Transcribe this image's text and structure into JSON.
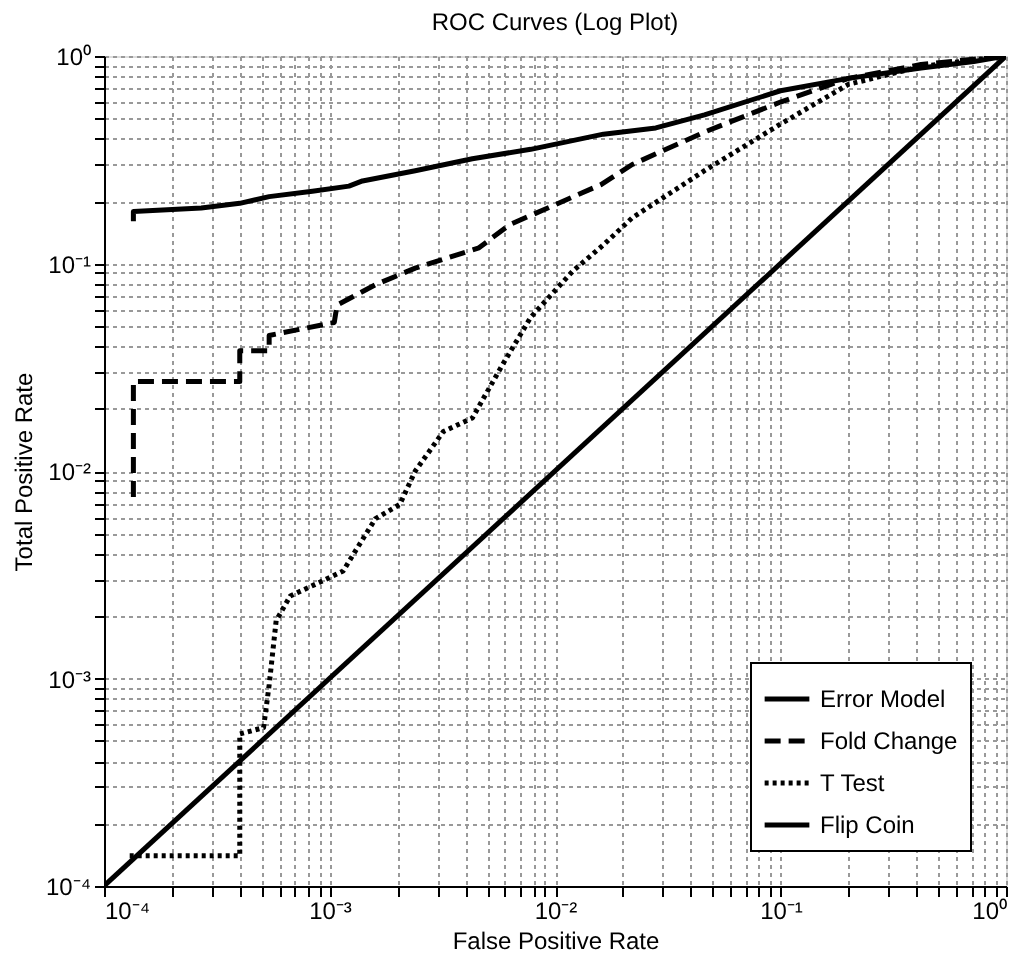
{
  "chart_data": {
    "type": "line",
    "title": "ROC Curves (Log Plot)",
    "xlabel": "False Positive Rate",
    "ylabel": "Total Positive Rate",
    "log": "xy",
    "grid": true,
    "legend": "bottom right",
    "xlim": [
      0.0001,
      1
    ],
    "ylim": [
      0.0001,
      1
    ],
    "xticks": [
      {
        "value": 0.0001,
        "label": "10⁻⁴"
      },
      {
        "value": 0.0002,
        "label": null
      },
      {
        "value": 0.0003,
        "label": null
      },
      {
        "value": 0.0004,
        "label": null
      },
      {
        "value": 0.0005,
        "label": null
      },
      {
        "value": 0.0006,
        "label": null
      },
      {
        "value": 0.0007,
        "label": null
      },
      {
        "value": 0.0008,
        "label": null
      },
      {
        "value": 0.0009,
        "label": null
      },
      {
        "value": 0.001,
        "label": "10⁻³"
      },
      {
        "value": 0.002,
        "label": null
      },
      {
        "value": 0.003,
        "label": null
      },
      {
        "value": 0.004,
        "label": null
      },
      {
        "value": 0.005,
        "label": null
      },
      {
        "value": 0.006,
        "label": null
      },
      {
        "value": 0.007,
        "label": null
      },
      {
        "value": 0.008,
        "label": null
      },
      {
        "value": 0.009,
        "label": null
      },
      {
        "value": 0.01,
        "label": "10⁻²"
      },
      {
        "value": 0.02,
        "label": null
      },
      {
        "value": 0.03,
        "label": null
      },
      {
        "value": 0.04,
        "label": null
      },
      {
        "value": 0.05,
        "label": null
      },
      {
        "value": 0.06,
        "label": null
      },
      {
        "value": 0.07,
        "label": null
      },
      {
        "value": 0.08,
        "label": null
      },
      {
        "value": 0.09,
        "label": null
      },
      {
        "value": 0.1,
        "label": "10⁻¹"
      },
      {
        "value": 0.2,
        "label": null
      },
      {
        "value": 0.3,
        "label": null
      },
      {
        "value": 0.4,
        "label": null
      },
      {
        "value": 0.5,
        "label": null
      },
      {
        "value": 0.6,
        "label": null
      },
      {
        "value": 0.7,
        "label": null
      },
      {
        "value": 0.8,
        "label": null
      },
      {
        "value": 0.9,
        "label": null
      },
      {
        "value": 1,
        "label": "10⁰"
      }
    ],
    "yticks": [
      {
        "value": 0.0001,
        "label": "10⁻⁴"
      },
      {
        "value": 0.0002,
        "label": null
      },
      {
        "value": 0.0003,
        "label": null
      },
      {
        "value": 0.0004,
        "label": null
      },
      {
        "value": 0.0005,
        "label": null
      },
      {
        "value": 0.0006,
        "label": null
      },
      {
        "value": 0.0007,
        "label": null
      },
      {
        "value": 0.0008,
        "label": null
      },
      {
        "value": 0.0009,
        "label": null
      },
      {
        "value": 0.001,
        "label": "10⁻³"
      },
      {
        "value": 0.002,
        "label": null
      },
      {
        "value": 0.003,
        "label": null
      },
      {
        "value": 0.004,
        "label": null
      },
      {
        "value": 0.005,
        "label": null
      },
      {
        "value": 0.006,
        "label": null
      },
      {
        "value": 0.007,
        "label": null
      },
      {
        "value": 0.008,
        "label": null
      },
      {
        "value": 0.009,
        "label": null
      },
      {
        "value": 0.01,
        "label": "10⁻²"
      },
      {
        "value": 0.02,
        "label": null
      },
      {
        "value": 0.03,
        "label": null
      },
      {
        "value": 0.04,
        "label": null
      },
      {
        "value": 0.05,
        "label": null
      },
      {
        "value": 0.06,
        "label": null
      },
      {
        "value": 0.07,
        "label": null
      },
      {
        "value": 0.08,
        "label": null
      },
      {
        "value": 0.09,
        "label": null
      },
      {
        "value": 0.1,
        "label": "10⁻¹"
      },
      {
        "value": 0.2,
        "label": null
      },
      {
        "value": 0.3,
        "label": null
      },
      {
        "value": 0.4,
        "label": null
      },
      {
        "value": 0.5,
        "label": null
      },
      {
        "value": 0.6,
        "label": null
      },
      {
        "value": 0.7,
        "label": null
      },
      {
        "value": 0.8,
        "label": null
      },
      {
        "value": 0.9,
        "label": null
      },
      {
        "value": 1,
        "label": "10⁰"
      }
    ],
    "series": [
      {
        "name": "Error Model",
        "color": "#000000",
        "line_style": "solid",
        "x": [
          0.000135,
          0.000135,
          0.00027,
          0.0004,
          0.00054,
          0.00084,
          0.00122,
          0.0014,
          0.0024,
          0.0043,
          0.0078,
          0.0164,
          0.028,
          0.046,
          0.1,
          0.2,
          0.42,
          0.72,
          1
        ],
        "values": [
          0.16,
          0.178,
          0.185,
          0.195,
          0.21,
          0.223,
          0.236,
          0.25,
          0.28,
          0.32,
          0.355,
          0.42,
          0.45,
          0.52,
          0.68,
          0.78,
          0.875,
          0.94,
          1
        ]
      },
      {
        "name": "Fold Change",
        "color": "#000000",
        "line_style": "dashed",
        "x": [
          0.000135,
          0.000135,
          0.0004,
          0.0004,
          0.00054,
          0.00054,
          0.00105,
          0.00108,
          0.0016,
          0.0024,
          0.0046,
          0.0063,
          0.016,
          0.022,
          0.046,
          0.1,
          0.2,
          0.42,
          1
        ],
        "values": [
          0.0075,
          0.027,
          0.027,
          0.038,
          0.038,
          0.045,
          0.052,
          0.063,
          0.079,
          0.095,
          0.119,
          0.154,
          0.24,
          0.3,
          0.43,
          0.6,
          0.78,
          0.91,
          1
        ]
      },
      {
        "name": "T Test",
        "color": "#000000",
        "line_style": "dotted",
        "x": [
          0.00013,
          0.0004,
          0.0004,
          0.00051,
          0.00054,
          0.00058,
          0.00067,
          0.0009,
          0.00115,
          0.0013,
          0.0016,
          0.00205,
          0.0024,
          0.0032,
          0.0043,
          0.0058,
          0.0078,
          0.012,
          0.0164,
          0.022,
          0.046,
          0.1,
          0.2,
          0.42,
          1
        ],
        "values": [
          0.00014,
          0.00014,
          0.00054,
          0.00058,
          0.00093,
          0.0019,
          0.0025,
          0.0029,
          0.0033,
          0.0041,
          0.0059,
          0.0069,
          0.01,
          0.0155,
          0.018,
          0.032,
          0.055,
          0.092,
          0.123,
          0.166,
          0.28,
          0.47,
          0.73,
          0.89,
          1
        ]
      },
      {
        "name": "Flip Coin",
        "color": "#000000",
        "line_style": "solid",
        "x": [
          0.0001,
          1
        ],
        "values": [
          0.0001,
          1
        ]
      }
    ]
  }
}
